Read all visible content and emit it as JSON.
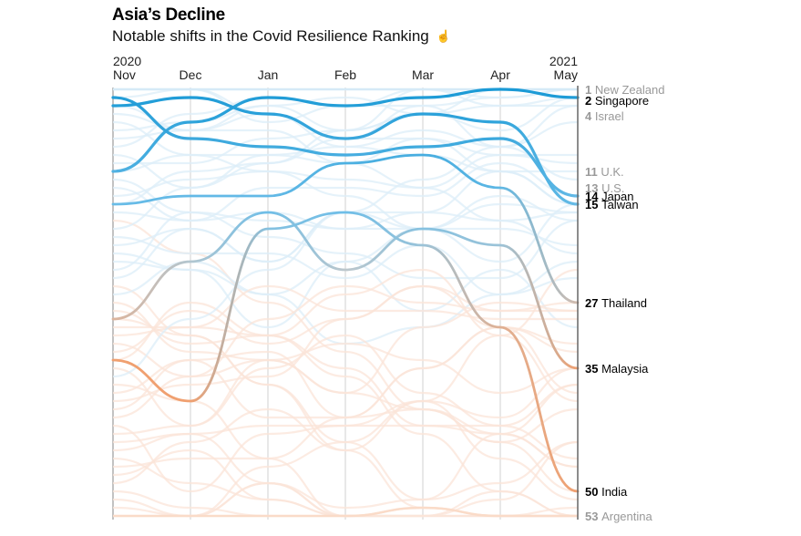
{
  "title": "Asia’s Decline",
  "subtitle": "Notable shifts in the Covid Resilience Ranking",
  "subtitle_icon": "hand-pointer-icon",
  "chart_data": {
    "type": "line",
    "subtype": "bump chart (rank over time)",
    "title": "Asia’s Decline",
    "subtitle": "Notable shifts in the Covid Resilience Ranking",
    "x": [
      "Nov",
      "Dec",
      "Jan",
      "Feb",
      "Mar",
      "Apr",
      "May"
    ],
    "x_year_labels": {
      "Nov": "2020",
      "May": "2021"
    },
    "y_axis": "rank",
    "ylim": [
      1,
      53
    ],
    "y_inverted": true,
    "total_ranked": 53,
    "colors": {
      "high_rank": "#1a9ad6",
      "mid": "#c7c7c7",
      "low_rank": "#f0a070",
      "context_lines_blue": "#d9ecf8",
      "context_lines_orange": "#fbe3d6",
      "gridline": "#cccccc",
      "axis": "#555555",
      "label_highlight": "#000000",
      "label_context": "#999999"
    },
    "series": [
      {
        "name": "Singapore",
        "values": [
          11,
          5,
          2,
          3,
          2,
          1,
          2
        ],
        "highlight": true
      },
      {
        "name": "Japan",
        "values": [
          2,
          7,
          8,
          9,
          8,
          7,
          14
        ],
        "highlight": true
      },
      {
        "name": "Taiwan",
        "values": [
          3,
          2,
          4,
          7,
          4,
          5,
          15
        ],
        "highlight": true
      },
      {
        "name": "Thailand",
        "values": [
          15,
          14,
          14,
          10,
          9,
          13,
          27
        ],
        "highlight": true
      },
      {
        "name": "Malaysia",
        "values": [
          29,
          22,
          16,
          23,
          18,
          20,
          35
        ],
        "highlight": true
      },
      {
        "name": "India",
        "values": [
          34,
          39,
          18,
          16,
          20,
          30,
          50
        ],
        "highlight": true
      }
    ],
    "end_labels": [
      {
        "rank": 1,
        "name": "New Zealand",
        "highlight": false
      },
      {
        "rank": 2,
        "name": "Singapore",
        "highlight": true
      },
      {
        "rank": 4,
        "name": "Israel",
        "highlight": false
      },
      {
        "rank": 11,
        "name": "U.K.",
        "highlight": false
      },
      {
        "rank": 13,
        "name": "U.S.",
        "highlight": false
      },
      {
        "rank": 14,
        "name": "Japan",
        "highlight": true
      },
      {
        "rank": 15,
        "name": "Taiwan",
        "highlight": true
      },
      {
        "rank": 27,
        "name": "Thailand",
        "highlight": true
      },
      {
        "rank": 35,
        "name": "Malaysia",
        "highlight": true
      },
      {
        "rank": 50,
        "name": "India",
        "highlight": true
      },
      {
        "rank": 53,
        "name": "Argentina",
        "highlight": false
      }
    ],
    "grid": true,
    "legend": "none (direct labels at right)"
  }
}
